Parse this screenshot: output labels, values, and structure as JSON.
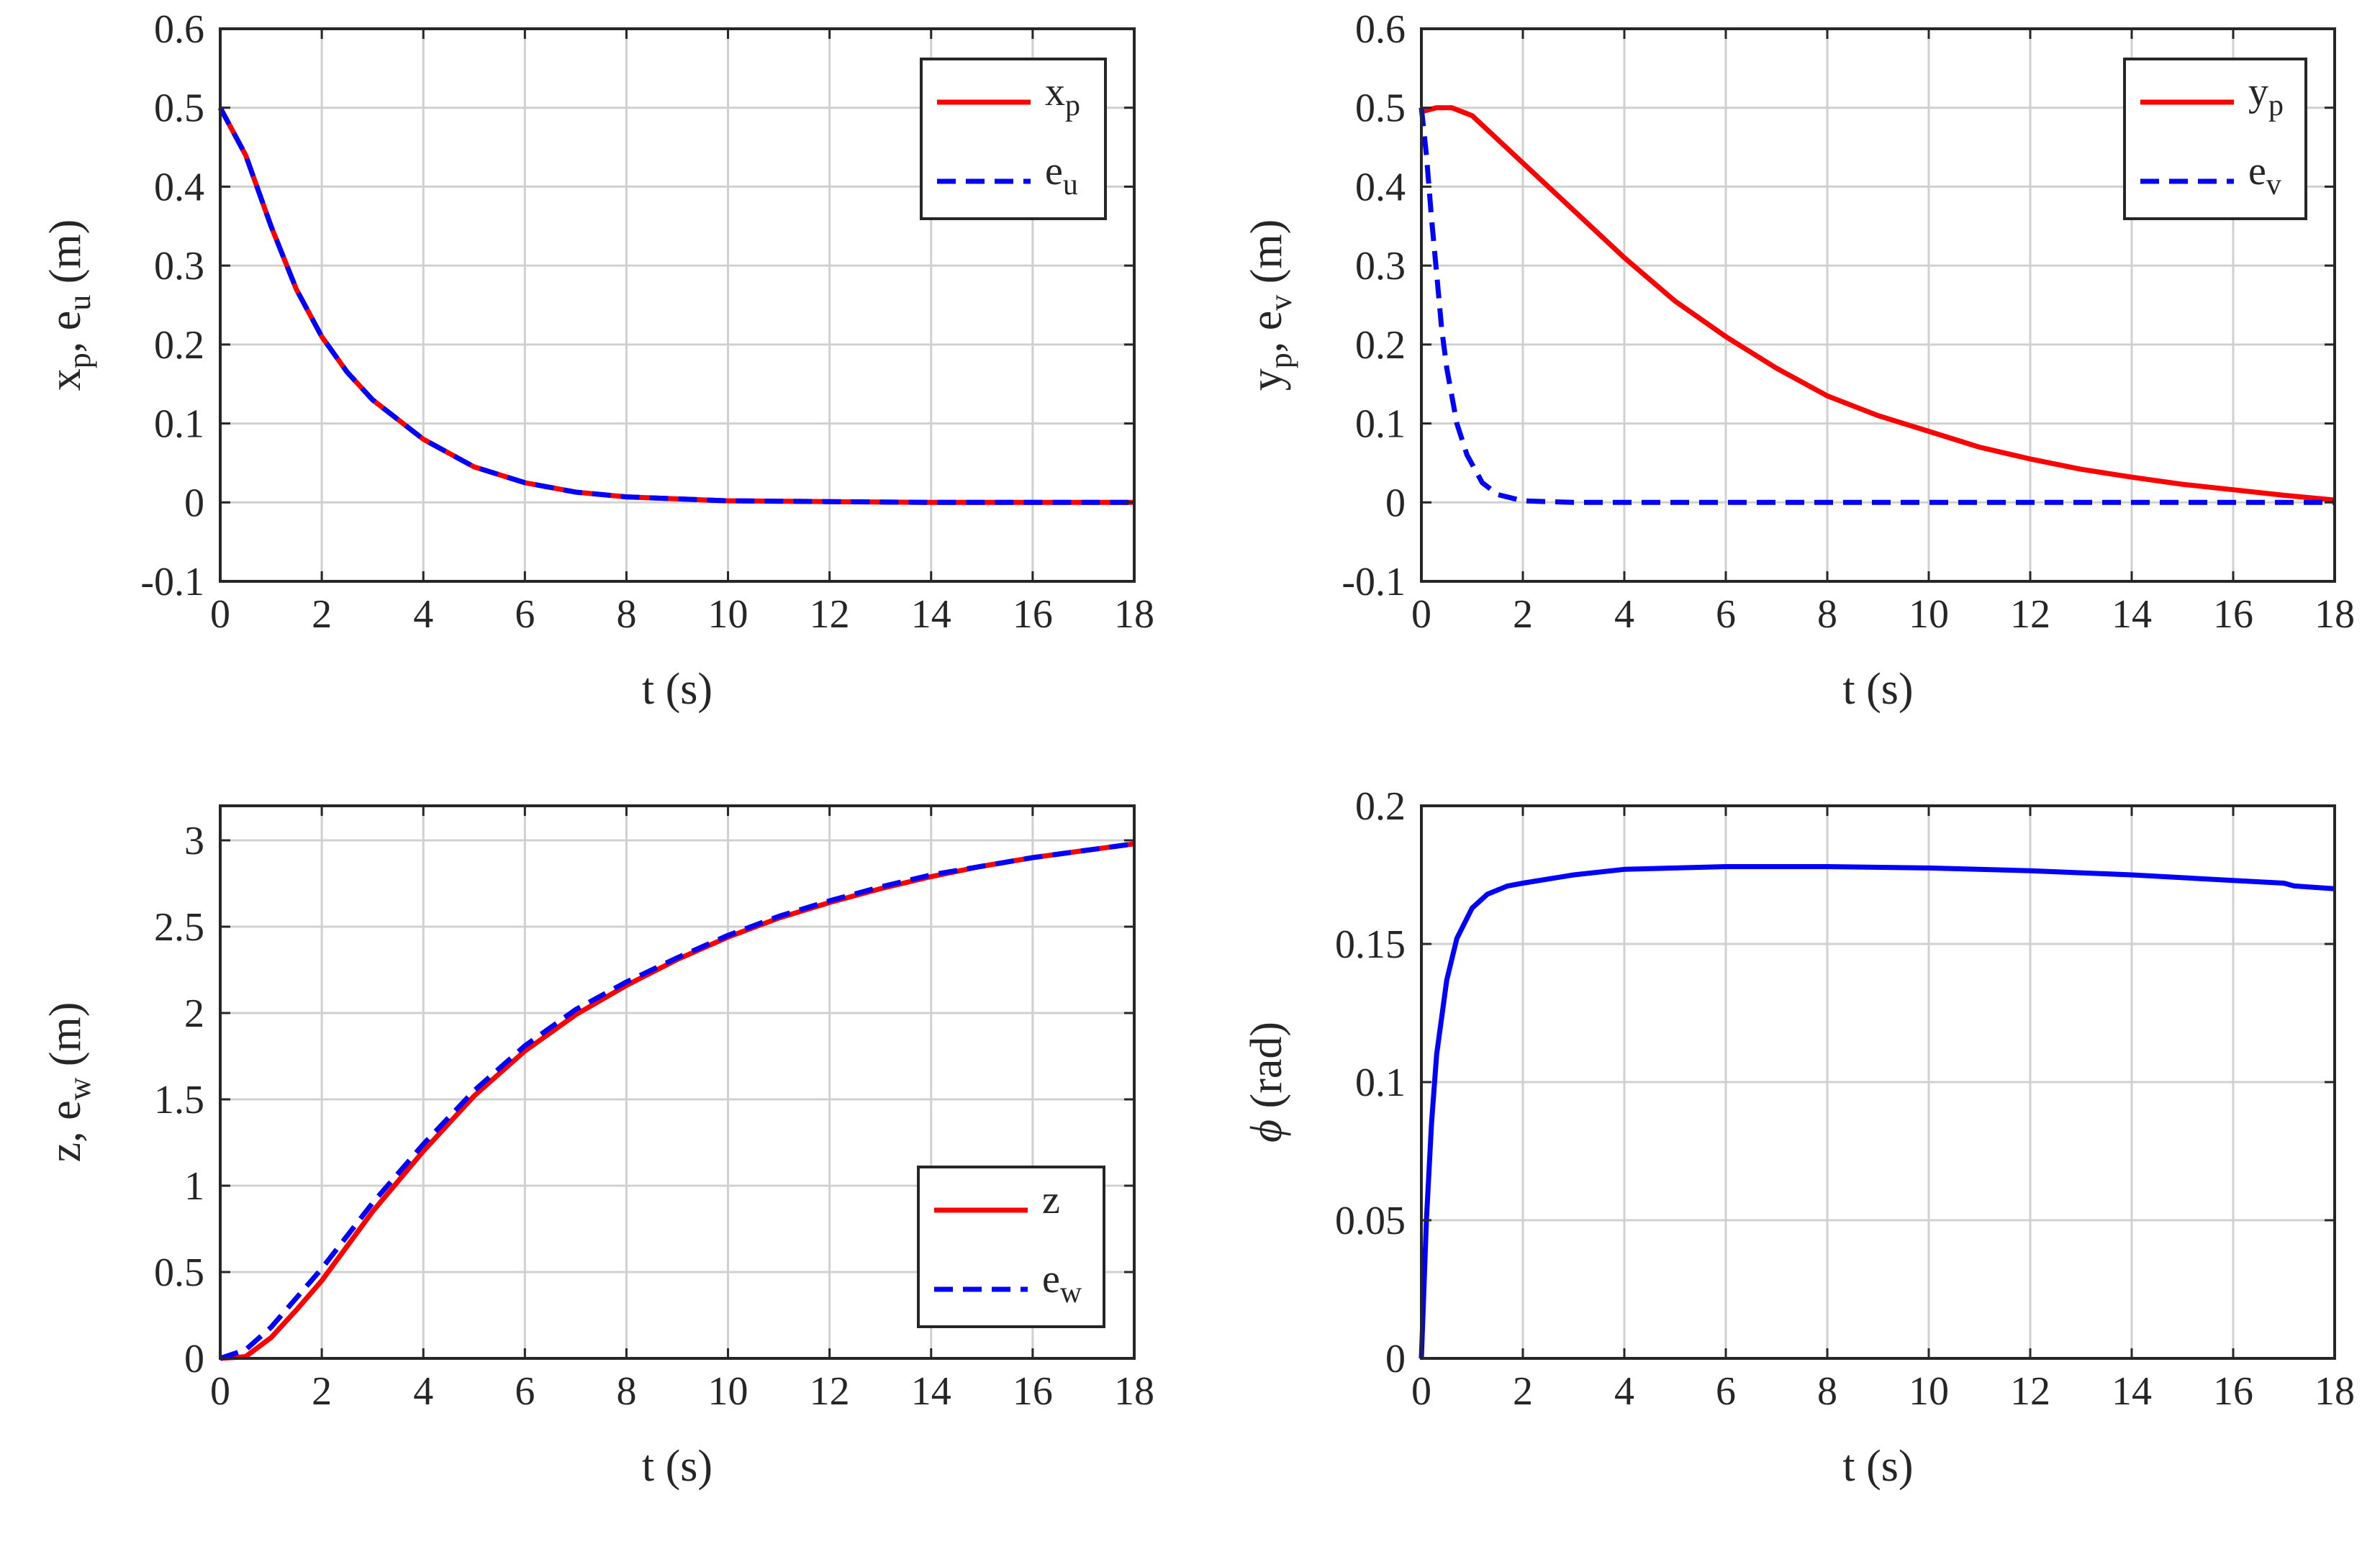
{
  "chart_data": [
    {
      "type": "line",
      "panel": "top-left",
      "xlabel": "t (s)",
      "ylabel": {
        "parts": [
          {
            "t": "x"
          },
          {
            "t": "p",
            "sub": true
          },
          {
            "t": ", e"
          },
          {
            "t": "u",
            "sub": true
          },
          {
            "t": " (m)"
          }
        ]
      },
      "xlim": [
        0,
        18
      ],
      "ylim": [
        -0.1,
        0.6
      ],
      "xticks": [
        0,
        2,
        4,
        6,
        8,
        10,
        12,
        14,
        16,
        18
      ],
      "xtick_labels": [
        "0",
        "2",
        "4",
        "6",
        "8",
        "10",
        "12",
        "14",
        "16",
        "18"
      ],
      "yticks": [
        -0.1,
        0,
        0.1,
        0.2,
        0.3,
        0.4,
        0.5,
        0.6
      ],
      "ytick_labels": [
        "-0.1",
        "0",
        "0.1",
        "0.2",
        "0.3",
        "0.4",
        "0.5",
        "0.6"
      ],
      "grid": true,
      "legend_position": "top-right",
      "x": [
        0,
        0.5,
        1,
        1.5,
        2,
        2.5,
        3,
        4,
        5,
        6,
        7,
        8,
        10,
        12,
        14,
        16,
        18
      ],
      "series": [
        {
          "name": "x_p",
          "legend": [
            {
              "t": "x"
            },
            {
              "t": "p",
              "sub": true
            }
          ],
          "color": "#ff0000",
          "dash": "solid",
          "values": [
            0.5,
            0.44,
            0.35,
            0.27,
            0.21,
            0.165,
            0.13,
            0.08,
            0.045,
            0.025,
            0.013,
            0.007,
            0.002,
            0.001,
            0.0,
            0.0,
            0.0
          ]
        },
        {
          "name": "e_u",
          "legend": [
            {
              "t": "e"
            },
            {
              "t": "u",
              "sub": true
            }
          ],
          "color": "#0000ff",
          "dash": "dashed",
          "values": [
            0.5,
            0.44,
            0.35,
            0.27,
            0.21,
            0.165,
            0.13,
            0.08,
            0.045,
            0.025,
            0.013,
            0.007,
            0.002,
            0.001,
            0.0,
            0.0,
            0.0
          ]
        }
      ]
    },
    {
      "type": "line",
      "panel": "top-right",
      "xlabel": "t (s)",
      "ylabel": {
        "parts": [
          {
            "t": "y"
          },
          {
            "t": "p",
            "sub": true
          },
          {
            "t": ", e"
          },
          {
            "t": "v",
            "sub": true
          },
          {
            "t": " (m)"
          }
        ]
      },
      "xlim": [
        0,
        18
      ],
      "ylim": [
        -0.1,
        0.6
      ],
      "xticks": [
        0,
        2,
        4,
        6,
        8,
        10,
        12,
        14,
        16,
        18
      ],
      "xtick_labels": [
        "0",
        "2",
        "4",
        "6",
        "8",
        "10",
        "12",
        "14",
        "16",
        "18"
      ],
      "yticks": [
        -0.1,
        0,
        0.1,
        0.2,
        0.3,
        0.4,
        0.5,
        0.6
      ],
      "ytick_labels": [
        "-0.1",
        "0",
        "0.1",
        "0.2",
        "0.3",
        "0.4",
        "0.5",
        "0.6"
      ],
      "grid": true,
      "legend_position": "top-right",
      "series": [
        {
          "name": "y_p",
          "legend": [
            {
              "t": "y"
            },
            {
              "t": "p",
              "sub": true
            }
          ],
          "color": "#ff0000",
          "dash": "solid",
          "x": [
            0,
            0.3,
            0.6,
            1,
            2,
            3,
            4,
            5,
            6,
            7,
            8,
            9,
            10,
            11,
            12,
            13,
            14,
            15,
            16,
            17,
            18
          ],
          "values": [
            0.495,
            0.5,
            0.5,
            0.49,
            0.43,
            0.37,
            0.31,
            0.255,
            0.21,
            0.17,
            0.135,
            0.11,
            0.09,
            0.07,
            0.055,
            0.042,
            0.032,
            0.023,
            0.016,
            0.009,
            0.003
          ]
        },
        {
          "name": "e_v",
          "legend": [
            {
              "t": "e"
            },
            {
              "t": "v",
              "sub": true
            }
          ],
          "color": "#0000ff",
          "dash": "dashed",
          "x": [
            0,
            0.1,
            0.2,
            0.3,
            0.4,
            0.5,
            0.7,
            0.9,
            1.2,
            1.5,
            2,
            3,
            6,
            10,
            14,
            18
          ],
          "values": [
            0.5,
            0.44,
            0.36,
            0.29,
            0.22,
            0.17,
            0.1,
            0.06,
            0.025,
            0.01,
            0.002,
            0.0,
            0.0,
            0.0,
            0.0,
            0.0
          ]
        }
      ]
    },
    {
      "type": "line",
      "panel": "bottom-left",
      "xlabel": "t (s)",
      "ylabel": {
        "parts": [
          {
            "t": "z, e"
          },
          {
            "t": "w",
            "sub": true
          },
          {
            "t": " (m)"
          }
        ]
      },
      "xlim": [
        0,
        18
      ],
      "ylim": [
        0,
        3.2
      ],
      "xticks": [
        0,
        2,
        4,
        6,
        8,
        10,
        12,
        14,
        16,
        18
      ],
      "xtick_labels": [
        "0",
        "2",
        "4",
        "6",
        "8",
        "10",
        "12",
        "14",
        "16",
        "18"
      ],
      "yticks": [
        0,
        0.5,
        1,
        1.5,
        2,
        2.5,
        3
      ],
      "ytick_labels": [
        "0",
        "0.5",
        "1",
        "1.5",
        "2",
        "2.5",
        "3"
      ],
      "grid": true,
      "legend_position": "bottom-right",
      "series": [
        {
          "name": "z",
          "legend": [
            {
              "t": "z"
            }
          ],
          "color": "#ff0000",
          "dash": "solid",
          "x": [
            0,
            0.5,
            1,
            1.5,
            2,
            3,
            4,
            5,
            6,
            7,
            8,
            9,
            10,
            11,
            12,
            13,
            14,
            15,
            16,
            17,
            18
          ],
          "values": [
            0,
            0.01,
            0.12,
            0.28,
            0.45,
            0.85,
            1.2,
            1.52,
            1.78,
            1.99,
            2.16,
            2.31,
            2.44,
            2.55,
            2.64,
            2.72,
            2.79,
            2.85,
            2.9,
            2.94,
            2.98
          ]
        },
        {
          "name": "e_w",
          "legend": [
            {
              "t": "e"
            },
            {
              "t": "w",
              "sub": true
            }
          ],
          "color": "#0000ff",
          "dash": "dashed",
          "x": [
            0,
            0.5,
            1,
            1.5,
            2,
            3,
            4,
            5,
            6,
            7,
            8,
            9,
            10,
            11,
            12,
            13,
            14,
            15,
            16,
            17,
            18
          ],
          "values": [
            0,
            0.05,
            0.18,
            0.35,
            0.52,
            0.9,
            1.24,
            1.55,
            1.81,
            2.02,
            2.18,
            2.32,
            2.45,
            2.56,
            2.65,
            2.73,
            2.8,
            2.85,
            2.9,
            2.94,
            2.98
          ]
        }
      ]
    },
    {
      "type": "line",
      "panel": "bottom-right",
      "xlabel": "t (s)",
      "ylabel": {
        "parts": [
          {
            "t": "ϕ",
            "italic": true
          },
          {
            "t": " (rad)"
          }
        ]
      },
      "xlim": [
        0,
        18
      ],
      "ylim": [
        0,
        0.2
      ],
      "xticks": [
        0,
        2,
        4,
        6,
        8,
        10,
        12,
        14,
        16,
        18
      ],
      "xtick_labels": [
        "0",
        "2",
        "4",
        "6",
        "8",
        "10",
        "12",
        "14",
        "16",
        "18"
      ],
      "yticks": [
        0,
        0.05,
        0.1,
        0.15,
        0.2
      ],
      "ytick_labels": [
        "0",
        "0.05",
        "0.1",
        "0.15",
        "0.2"
      ],
      "grid": true,
      "legend_position": "none",
      "series": [
        {
          "name": "phi",
          "color": "#0000ff",
          "dash": "solid",
          "x": [
            0,
            0.1,
            0.2,
            0.3,
            0.5,
            0.7,
            1,
            1.3,
            1.7,
            2,
            3,
            4,
            6,
            8,
            10,
            12,
            14,
            16,
            17,
            17.2,
            18
          ],
          "values": [
            0,
            0.05,
            0.085,
            0.11,
            0.137,
            0.152,
            0.163,
            0.168,
            0.171,
            0.172,
            0.175,
            0.177,
            0.178,
            0.178,
            0.1775,
            0.1765,
            0.175,
            0.173,
            0.172,
            0.171,
            0.17
          ]
        }
      ]
    }
  ]
}
